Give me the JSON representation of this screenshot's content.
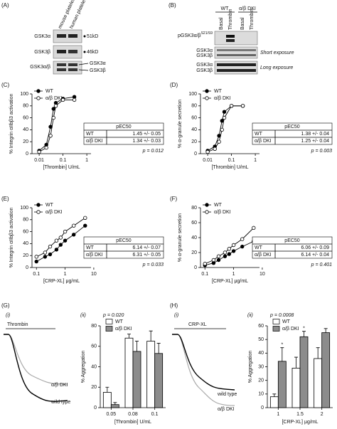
{
  "panel_labels": [
    "(A)",
    "(B)",
    "(C)",
    "(D)",
    "(E)",
    "(F)",
    "(G)",
    "(H)"
  ],
  "blot_a": {
    "columns": [
      "mouse platelets",
      "human platelets"
    ],
    "rows": [
      "GSK3α",
      "GSK3β",
      "GSK3α/β"
    ],
    "markers": [
      "51kD",
      "46kD"
    ],
    "bands": [
      "GSK3α",
      "GSK3β"
    ]
  },
  "blot_b": {
    "groups": [
      "WT",
      "α/β DKI"
    ],
    "lanes": [
      "Basal",
      "Thrombin",
      "Basal",
      "Thrombin"
    ],
    "phospho": "pGSK3α/β",
    "sites": "S21/S9",
    "rows": [
      "GSK3α",
      "GSK3β",
      "GSK3α",
      "GSK3β"
    ],
    "exposures": [
      "Short exposure",
      "Long exposure"
    ]
  },
  "traces": [
    {
      "sublabel": "(i)",
      "agonist": "Thrombin",
      "labels": [
        "α/β DKI",
        "wild type"
      ]
    },
    {
      "sublabel": "(i)",
      "agonist": "CRP-XL",
      "labels": [
        "wild type",
        "α/β DKI"
      ]
    }
  ],
  "chart_data": [
    {
      "type": "line",
      "xlabel": "[Thrombin] U/mL",
      "ylabel": "% Integrin αIIbβ3 activation",
      "log_x": true,
      "xlim": [
        0.005,
        1.5
      ],
      "xticks": [
        0.01,
        0.1,
        1
      ],
      "ylim": [
        0,
        100
      ],
      "yticks": [
        0,
        20,
        40,
        60,
        80,
        100
      ],
      "x": [
        0.01,
        0.02,
        0.03,
        0.04,
        0.05,
        0.1,
        0.3
      ],
      "series": [
        {
          "name": "WT",
          "color": "#000000",
          "values": [
            5,
            15,
            45,
            75,
            85,
            92,
            95
          ]
        },
        {
          "name": "α/β DKI",
          "color": "#ffffff",
          "values": [
            3,
            10,
            30,
            60,
            80,
            90,
            90
          ]
        }
      ],
      "table": {
        "header": "pEC50",
        "rows": [
          [
            "WT",
            "1.45 +/- 0.05"
          ],
          [
            "α/β DKI",
            "1.34 +/- 0.03"
          ]
        ]
      },
      "p_value": "p = 0.012"
    },
    {
      "type": "line",
      "xlabel": "[Thrombin] U/mL",
      "ylabel": "% α-granule secretion",
      "log_x": true,
      "xlim": [
        0.005,
        1.5
      ],
      "xticks": [
        0.01,
        0.1,
        1
      ],
      "ylim": [
        0,
        100
      ],
      "yticks": [
        0,
        20,
        40,
        60,
        80,
        100
      ],
      "x": [
        0.01,
        0.02,
        0.03,
        0.04,
        0.05,
        0.1,
        0.3
      ],
      "series": [
        {
          "name": "WT",
          "color": "#000000",
          "values": [
            5,
            12,
            30,
            55,
            70,
            80,
            80
          ]
        },
        {
          "name": "α/β DKI",
          "color": "#ffffff",
          "values": [
            3,
            8,
            20,
            40,
            60,
            80,
            80
          ]
        }
      ],
      "table": {
        "header": "pEC50",
        "rows": [
          [
            "WT",
            "1.38 +/- 0.04"
          ],
          [
            "α/β DKI",
            "1.25 +/- 0.04"
          ]
        ]
      },
      "p_value": "p = 0.003"
    },
    {
      "type": "line",
      "xlabel": "[CRP-XL] μg/mL",
      "ylabel": "% Integrin αIIbβ3 activation",
      "log_x": true,
      "xlim": [
        0.07,
        8
      ],
      "xticks": [
        0.1,
        1,
        10
      ],
      "ylim": [
        0,
        100
      ],
      "yticks": [
        0,
        20,
        40,
        60,
        80,
        100
      ],
      "x": [
        0.1,
        0.2,
        0.3,
        0.5,
        0.7,
        1,
        2,
        5
      ],
      "series": [
        {
          "name": "WT",
          "color": "#000000",
          "values": [
            10,
            18,
            22,
            30,
            38,
            45,
            55,
            70
          ]
        },
        {
          "name": "α/β DKI",
          "color": "#ffffff",
          "values": [
            18,
            25,
            35,
            45,
            50,
            60,
            70,
            83
          ]
        }
      ],
      "table": {
        "header": "pEC50",
        "rows": [
          [
            "WT",
            "6.14 +/- 0.07"
          ],
          [
            "α/β DKI",
            "6.31 +/- 0.05"
          ]
        ]
      },
      "p_value": "p = 0.033"
    },
    {
      "type": "line",
      "xlabel": "[CRP-XL] μg/mL",
      "ylabel": "% α-granule secretion",
      "log_x": true,
      "xlim": [
        0.07,
        8
      ],
      "xticks": [
        0.1,
        1,
        10
      ],
      "ylim": [
        0,
        80
      ],
      "yticks": [
        0,
        20,
        40,
        60,
        80
      ],
      "x": [
        0.1,
        0.2,
        0.3,
        0.5,
        0.7,
        1,
        2,
        5
      ],
      "series": [
        {
          "name": "WT",
          "color": "#000000",
          "values": [
            3,
            6,
            10,
            15,
            18,
            22,
            28,
            35
          ]
        },
        {
          "name": "α/β DKI",
          "color": "#ffffff",
          "values": [
            5,
            10,
            15,
            20,
            25,
            30,
            38,
            53
          ]
        }
      ],
      "table": {
        "header": "pEC50",
        "rows": [
          [
            "WT",
            "6.06 +/- 0.09"
          ],
          [
            "α/β DKI",
            "6.14 +/- 0.04"
          ]
        ]
      },
      "p_value": "p = 0.401"
    },
    {
      "type": "bar",
      "sublabel": "(ii)",
      "p_value": "p = 0.020",
      "xlabel": "[Thrombin] U/mL",
      "ylabel": "% Aggregation",
      "categories": [
        "0.05",
        "0.08",
        "0.1"
      ],
      "ylim": [
        0,
        80
      ],
      "yticks": [
        0,
        20,
        40,
        60,
        80
      ],
      "series": [
        {
          "name": "WT",
          "color": "#ffffff",
          "values": [
            15,
            68,
            65
          ],
          "errors": [
            5,
            4,
            10
          ]
        },
        {
          "name": "α/β DKI",
          "color": "#8c8c8c",
          "values": [
            3,
            55,
            53
          ],
          "errors": [
            2,
            10,
            10
          ]
        }
      ]
    },
    {
      "type": "bar",
      "sublabel": "(ii)",
      "p_value": "p = 0.0008",
      "xlabel": "[CRP-XL] μg/mL",
      "ylabel": "% Aggregation",
      "categories": [
        "1",
        "1.5",
        "2"
      ],
      "ylim": [
        0,
        60
      ],
      "yticks": [
        0,
        10,
        20,
        30,
        40,
        50,
        60
      ],
      "series": [
        {
          "name": "WT",
          "color": "#ffffff",
          "values": [
            8,
            29,
            36
          ],
          "errors": [
            2,
            8,
            8
          ]
        },
        {
          "name": "α/β DKI",
          "color": "#8c8c8c",
          "values": [
            34,
            52,
            55
          ],
          "errors": [
            10,
            4,
            3
          ],
          "marks": [
            "*",
            "*",
            null
          ]
        }
      ]
    }
  ]
}
